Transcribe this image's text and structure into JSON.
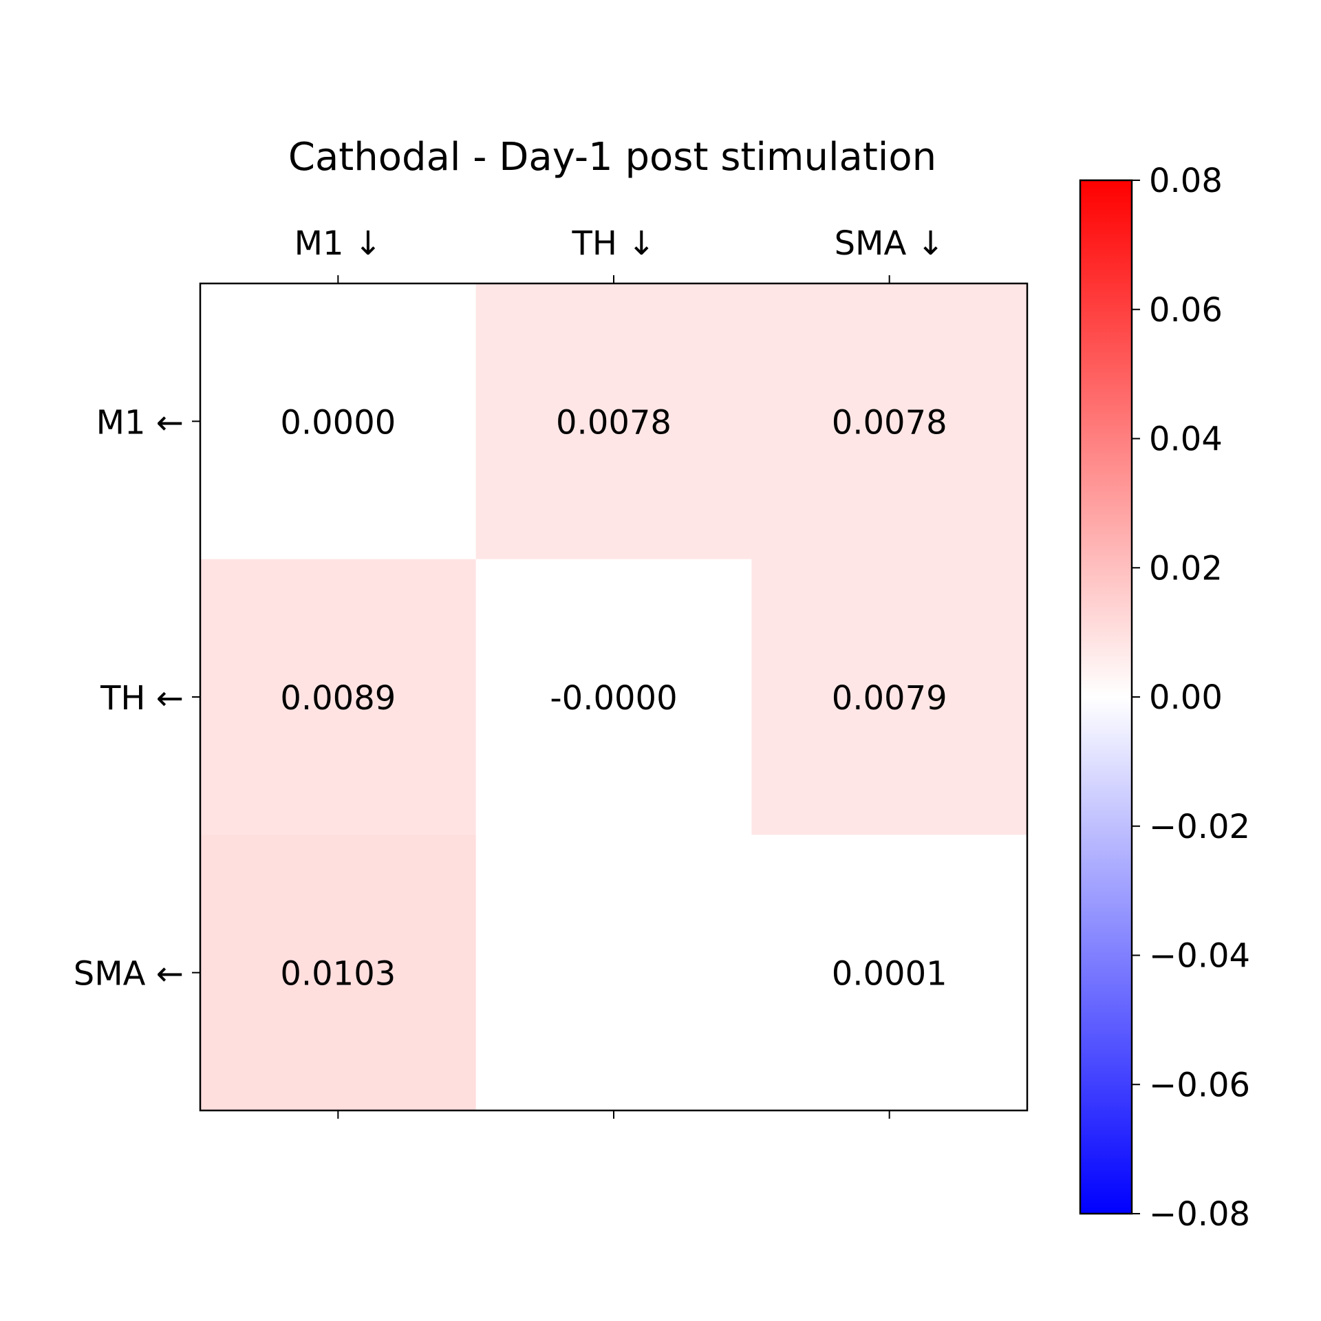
{
  "chart_data": {
    "type": "heatmap",
    "title": "Cathodal - Day-1 post stimulation",
    "col_labels": [
      "M1 ↓",
      "TH ↓",
      "SMA ↓"
    ],
    "row_labels": [
      "M1 ←",
      "TH ←",
      "SMA ←"
    ],
    "values": [
      [
        0.0,
        0.0078,
        0.0078
      ],
      [
        0.0089,
        -0.0,
        0.0079
      ],
      [
        0.0103,
        null,
        0.0001
      ]
    ],
    "cell_labels": [
      [
        "0.0000",
        "0.0078",
        "0.0078"
      ],
      [
        "0.0089",
        "-0.0000",
        "0.0079"
      ],
      [
        "0.0103",
        "",
        "0.0001"
      ]
    ],
    "colormap": "bwr",
    "vlim": [
      -0.08,
      0.08
    ],
    "colorbar": {
      "ticks": [
        0.08,
        0.06,
        0.04,
        0.02,
        0.0,
        -0.02,
        -0.04,
        -0.06,
        -0.08
      ],
      "tick_labels": [
        "0.08",
        "0.06",
        "0.04",
        "0.02",
        "0.00",
        "−0.02",
        "−0.04",
        "−0.06",
        "−0.08"
      ]
    },
    "colors": {
      "low": "#0000ff",
      "mid": "#ffffff",
      "high": "#ff0000"
    }
  }
}
